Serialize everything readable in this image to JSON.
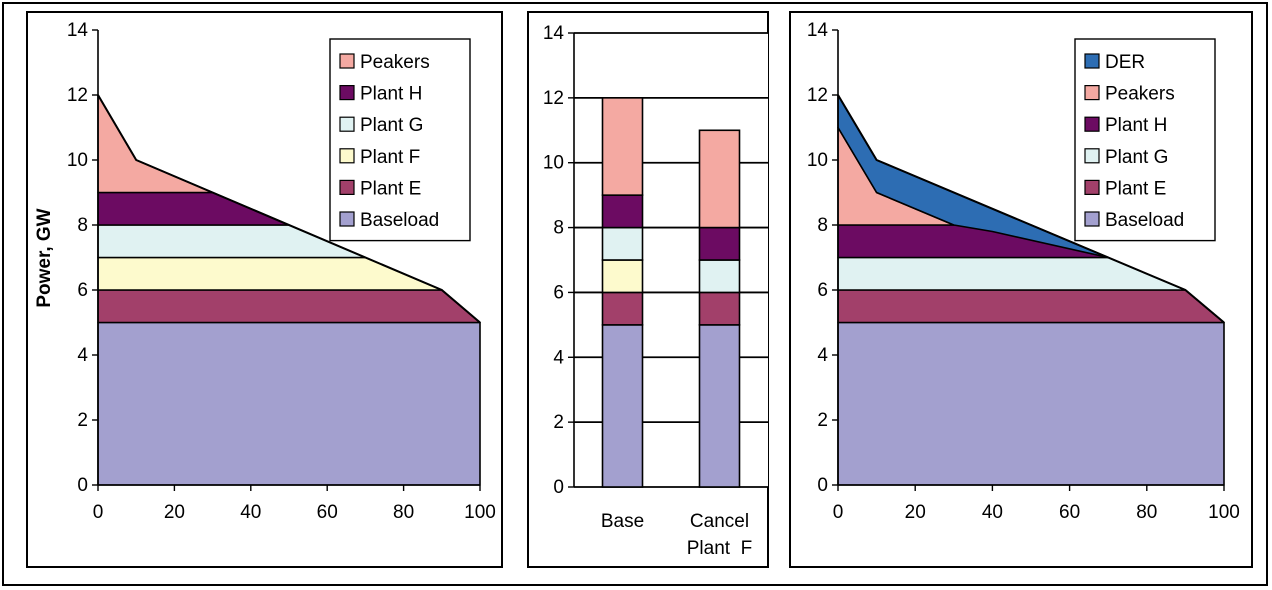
{
  "figure_ylabel": "Power, GW",
  "chart_data": [
    {
      "type": "area",
      "title": "",
      "xlabel": "",
      "ylabel": "Power, GW",
      "xlim": [
        0,
        100
      ],
      "ylim": [
        0,
        14
      ],
      "xticks": [
        "0",
        "20",
        "40",
        "60",
        "80",
        "100"
      ],
      "yticks": [
        "0",
        "2",
        "4",
        "6",
        "8",
        "10",
        "12",
        "14"
      ],
      "grid": false,
      "legend_position": "top-right",
      "load_curve": [
        [
          0,
          12
        ],
        [
          10,
          10
        ],
        [
          90,
          6
        ],
        [
          100,
          5
        ]
      ],
      "series": [
        {
          "name": "Baseload",
          "from": 0,
          "to": 5,
          "color": "#a3a0cf"
        },
        {
          "name": "Plant E",
          "from": 5,
          "to": 6,
          "color": "#a2406a"
        },
        {
          "name": "Plant F",
          "from": 6,
          "to": 7,
          "color": "#fdfacd"
        },
        {
          "name": "Plant G",
          "from": 7,
          "to": 8,
          "color": "#e0f2f2"
        },
        {
          "name": "Plant H",
          "from": 8,
          "to": 9,
          "color": "#6c0b62"
        },
        {
          "name": "Peakers",
          "from": 9,
          "to": 14,
          "color": "#f4a9a2"
        }
      ],
      "legend_order": [
        "Peakers",
        "Plant H",
        "Plant G",
        "Plant F",
        "Plant E",
        "Baseload"
      ]
    },
    {
      "type": "bar",
      "stacked": true,
      "title": "",
      "ylim": [
        0,
        14
      ],
      "yticks": [
        "0",
        "2",
        "4",
        "6",
        "8",
        "10",
        "12",
        "14"
      ],
      "grid": true,
      "categories": [
        {
          "lines": [
            "Base"
          ]
        },
        {
          "lines": [
            "Cancel",
            "Plant  F"
          ]
        }
      ],
      "series": [
        {
          "name": "Baseload",
          "color": "#a3a0cf",
          "values": [
            5,
            5
          ]
        },
        {
          "name": "Plant E",
          "color": "#a2406a",
          "values": [
            1,
            1
          ]
        },
        {
          "name": "Plant F",
          "color": "#fdfacd",
          "values": [
            1,
            0
          ]
        },
        {
          "name": "Plant G",
          "color": "#e0f2f2",
          "values": [
            1,
            1
          ]
        },
        {
          "name": "Plant H",
          "color": "#6c0b62",
          "values": [
            1,
            1
          ]
        },
        {
          "name": "Peakers",
          "color": "#f4a9a2",
          "values": [
            3,
            3
          ]
        }
      ]
    },
    {
      "type": "area",
      "title": "",
      "xlabel": "",
      "ylabel": "",
      "xlim": [
        0,
        100
      ],
      "ylim": [
        0,
        14
      ],
      "xticks": [
        "0",
        "20",
        "40",
        "60",
        "80",
        "100"
      ],
      "yticks": [
        "0",
        "2",
        "4",
        "6",
        "8",
        "10",
        "12",
        "14"
      ],
      "grid": false,
      "legend_position": "top-right",
      "load_curve": [
        [
          0,
          12
        ],
        [
          10,
          10
        ],
        [
          90,
          6
        ],
        [
          100,
          5
        ]
      ],
      "der_boundary": [
        [
          0,
          11
        ],
        [
          10,
          9
        ],
        [
          30,
          8
        ],
        [
          40,
          7.8
        ],
        [
          70,
          7
        ]
      ],
      "series": [
        {
          "name": "Baseload",
          "from": 0,
          "to": 5,
          "color": "#a3a0cf"
        },
        {
          "name": "Plant E",
          "from": 5,
          "to": 6,
          "color": "#a2406a"
        },
        {
          "name": "Plant G",
          "from": 6,
          "to": 7,
          "color": "#e0f2f2"
        },
        {
          "name": "Plant H",
          "from": 7,
          "to": 8,
          "color": "#6c0b62"
        },
        {
          "name": "Peakers",
          "from": 8,
          "to": "der",
          "color": "#f4a9a2"
        },
        {
          "name": "DER",
          "from": "der",
          "to": 14,
          "color": "#2d6db3"
        }
      ],
      "legend_order": [
        "DER",
        "Peakers",
        "Plant H",
        "Plant G",
        "Plant E",
        "Baseload"
      ]
    }
  ]
}
